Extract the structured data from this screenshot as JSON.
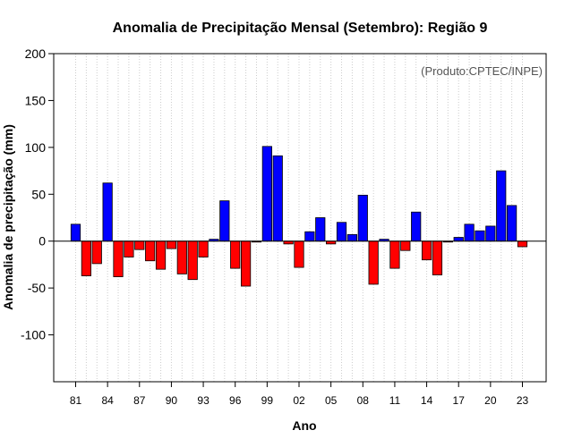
{
  "chart_data": {
    "type": "bar",
    "title": "Anomalia de Precipitação Mensal (Setembro): Região 9",
    "xlabel": "Ano",
    "ylabel": "Anomalia de precipitação (mm)",
    "source_note": "(Produto:CPTEC/INPE)",
    "ylim": [
      -150,
      200
    ],
    "yticks": [
      200,
      150,
      100,
      50,
      0,
      -50,
      -100
    ],
    "categories": [
      "81",
      "82",
      "83",
      "84",
      "85",
      "86",
      "87",
      "88",
      "89",
      "90",
      "91",
      "92",
      "93",
      "94",
      "95",
      "96",
      "97",
      "98",
      "99",
      "00",
      "01",
      "02",
      "03",
      "04",
      "05",
      "06",
      "07",
      "08",
      "09",
      "10",
      "11",
      "12",
      "13",
      "14",
      "15",
      "16",
      "17",
      "18",
      "19",
      "20",
      "21",
      "22",
      "23"
    ],
    "xtick_labels": [
      "81",
      "84",
      "87",
      "90",
      "93",
      "96",
      "99",
      "02",
      "05",
      "08",
      "11",
      "14",
      "17",
      "20",
      "23"
    ],
    "values": [
      18,
      -37,
      -24,
      62,
      -38,
      -17,
      -9,
      -21,
      -30,
      -8,
      -35,
      -41,
      -17,
      2,
      43,
      -29,
      -48,
      -1,
      101,
      91,
      -3,
      -28,
      10,
      25,
      -3,
      20,
      7,
      49,
      -46,
      2,
      -29,
      -10,
      31,
      -20,
      -36,
      -1,
      4,
      18,
      11,
      16,
      75,
      38,
      -6
    ],
    "grid": "vertical dotted",
    "colors": {
      "positive": "#0000ff",
      "negative": "#ff0000",
      "grid": "#cccccc",
      "zero_line": "#000000"
    }
  }
}
